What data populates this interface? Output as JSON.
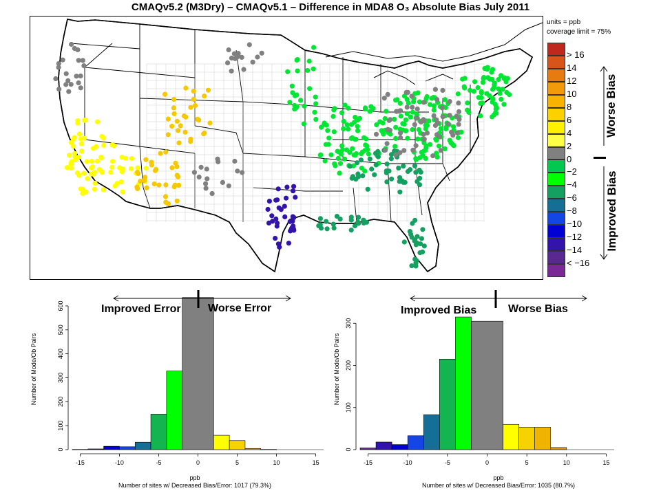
{
  "title": "CMAQv5.2 (M3Dry) – CMAQv5.1 – Difference in MDA8 O₃ Absolute Bias July 2011",
  "legend_note": {
    "units": "units = ppb",
    "coverage": "coverage limit = 75%"
  },
  "colorbar": {
    "labels": [
      "> 16",
      "14",
      "12",
      "10",
      "8",
      "6",
      "4",
      "2",
      "0",
      "−2",
      "−4",
      "−6",
      "−8",
      "−10",
      "−12",
      "−14",
      "< −16"
    ],
    "colors": [
      "#c0281e",
      "#d9541a",
      "#e87a12",
      "#f29a0a",
      "#f8b300",
      "#fbd200",
      "#fff000",
      "#ffff46",
      "#808080",
      "#00c850",
      "#00ff00",
      "#14a060",
      "#146e96",
      "#1446e6",
      "#0000d2",
      "#3214aa",
      "#5a2891",
      "#7a2896"
    ],
    "worse_label": "Worse Bias",
    "improved_label": "Improved Bias"
  },
  "chart_data": [
    {
      "type": "bar",
      "id": "error_histogram",
      "xlabel": "ppb",
      "ylabel": "Number of Mode/Ob Pairs",
      "footnote": "Number of sites w/ Decreased Bias/Error: 1017 (79.3%)",
      "xlim": [
        -16,
        16
      ],
      "ylim": [
        0,
        640
      ],
      "x_ticks": [
        -15,
        -10,
        -5,
        0,
        5,
        10,
        15
      ],
      "y_ticks": [
        0,
        100,
        200,
        300,
        400,
        500,
        600
      ],
      "bins": [
        {
          "from": -16,
          "to": -14,
          "value": 1,
          "color": "#5a2891"
        },
        {
          "from": -14,
          "to": -12,
          "value": 3,
          "color": "#3214aa"
        },
        {
          "from": -12,
          "to": -10,
          "value": 14,
          "color": "#0000d2"
        },
        {
          "from": -10,
          "to": -8,
          "value": 12,
          "color": "#1446e6"
        },
        {
          "from": -8,
          "to": -6,
          "value": 31,
          "color": "#146e96"
        },
        {
          "from": -6,
          "to": -4,
          "value": 148,
          "color": "#14b450"
        },
        {
          "from": -4,
          "to": -2,
          "value": 328,
          "color": "#00ff00"
        },
        {
          "from": -2,
          "to": 2,
          "value": 635,
          "color": "#808080"
        },
        {
          "from": 2,
          "to": 4,
          "value": 60,
          "color": "#ffff00"
        },
        {
          "from": 4,
          "to": 6,
          "value": 38,
          "color": "#f5d200"
        },
        {
          "from": 6,
          "to": 8,
          "value": 5,
          "color": "#f0b400"
        },
        {
          "from": 8,
          "to": 10,
          "value": 1,
          "color": "#e69600"
        }
      ],
      "annotation": {
        "left": "Improved Error",
        "right": "Worse Error"
      }
    },
    {
      "type": "bar",
      "id": "bias_histogram",
      "xlabel": "ppb",
      "ylabel": "Number of Mode/Ob Pairs",
      "footnote": "Number of sites w/ Decreased Bias/Error: 1035 (80.7%)",
      "xlim": [
        -16,
        16
      ],
      "ylim": [
        0,
        320
      ],
      "x_ticks": [
        -15,
        -10,
        -5,
        0,
        5,
        10,
        15
      ],
      "y_ticks": [
        0,
        100,
        200,
        300
      ],
      "bins": [
        {
          "from": -16,
          "to": -14,
          "value": 4,
          "color": "#5a2891"
        },
        {
          "from": -14,
          "to": -12,
          "value": 18,
          "color": "#3214aa"
        },
        {
          "from": -12,
          "to": -10,
          "value": 12,
          "color": "#0000d2"
        },
        {
          "from": -10,
          "to": -8,
          "value": 33,
          "color": "#1446e6"
        },
        {
          "from": -8,
          "to": -6,
          "value": 83,
          "color": "#146e96"
        },
        {
          "from": -6,
          "to": -4,
          "value": 215,
          "color": "#14b450"
        },
        {
          "from": -4,
          "to": -2,
          "value": 315,
          "color": "#00ff00"
        },
        {
          "from": -2,
          "to": 2,
          "value": 305,
          "color": "#808080"
        },
        {
          "from": 2,
          "to": 4,
          "value": 60,
          "color": "#ffff00"
        },
        {
          "from": 4,
          "to": 6,
          "value": 53,
          "color": "#f5d200"
        },
        {
          "from": 6,
          "to": 8,
          "value": 53,
          "color": "#f0b400"
        },
        {
          "from": 8,
          "to": 10,
          "value": 5,
          "color": "#e69600"
        }
      ],
      "annotation": {
        "left": "Improved Bias",
        "right": "Worse Bias"
      }
    }
  ],
  "map": {
    "site_colors_by_region": {
      "west_coast": "#ffff00",
      "southwest": "#f5c800",
      "texas_gulf": "#3214aa",
      "east": "#00e632",
      "southeast": "#14a060",
      "other": "#808080"
    }
  }
}
